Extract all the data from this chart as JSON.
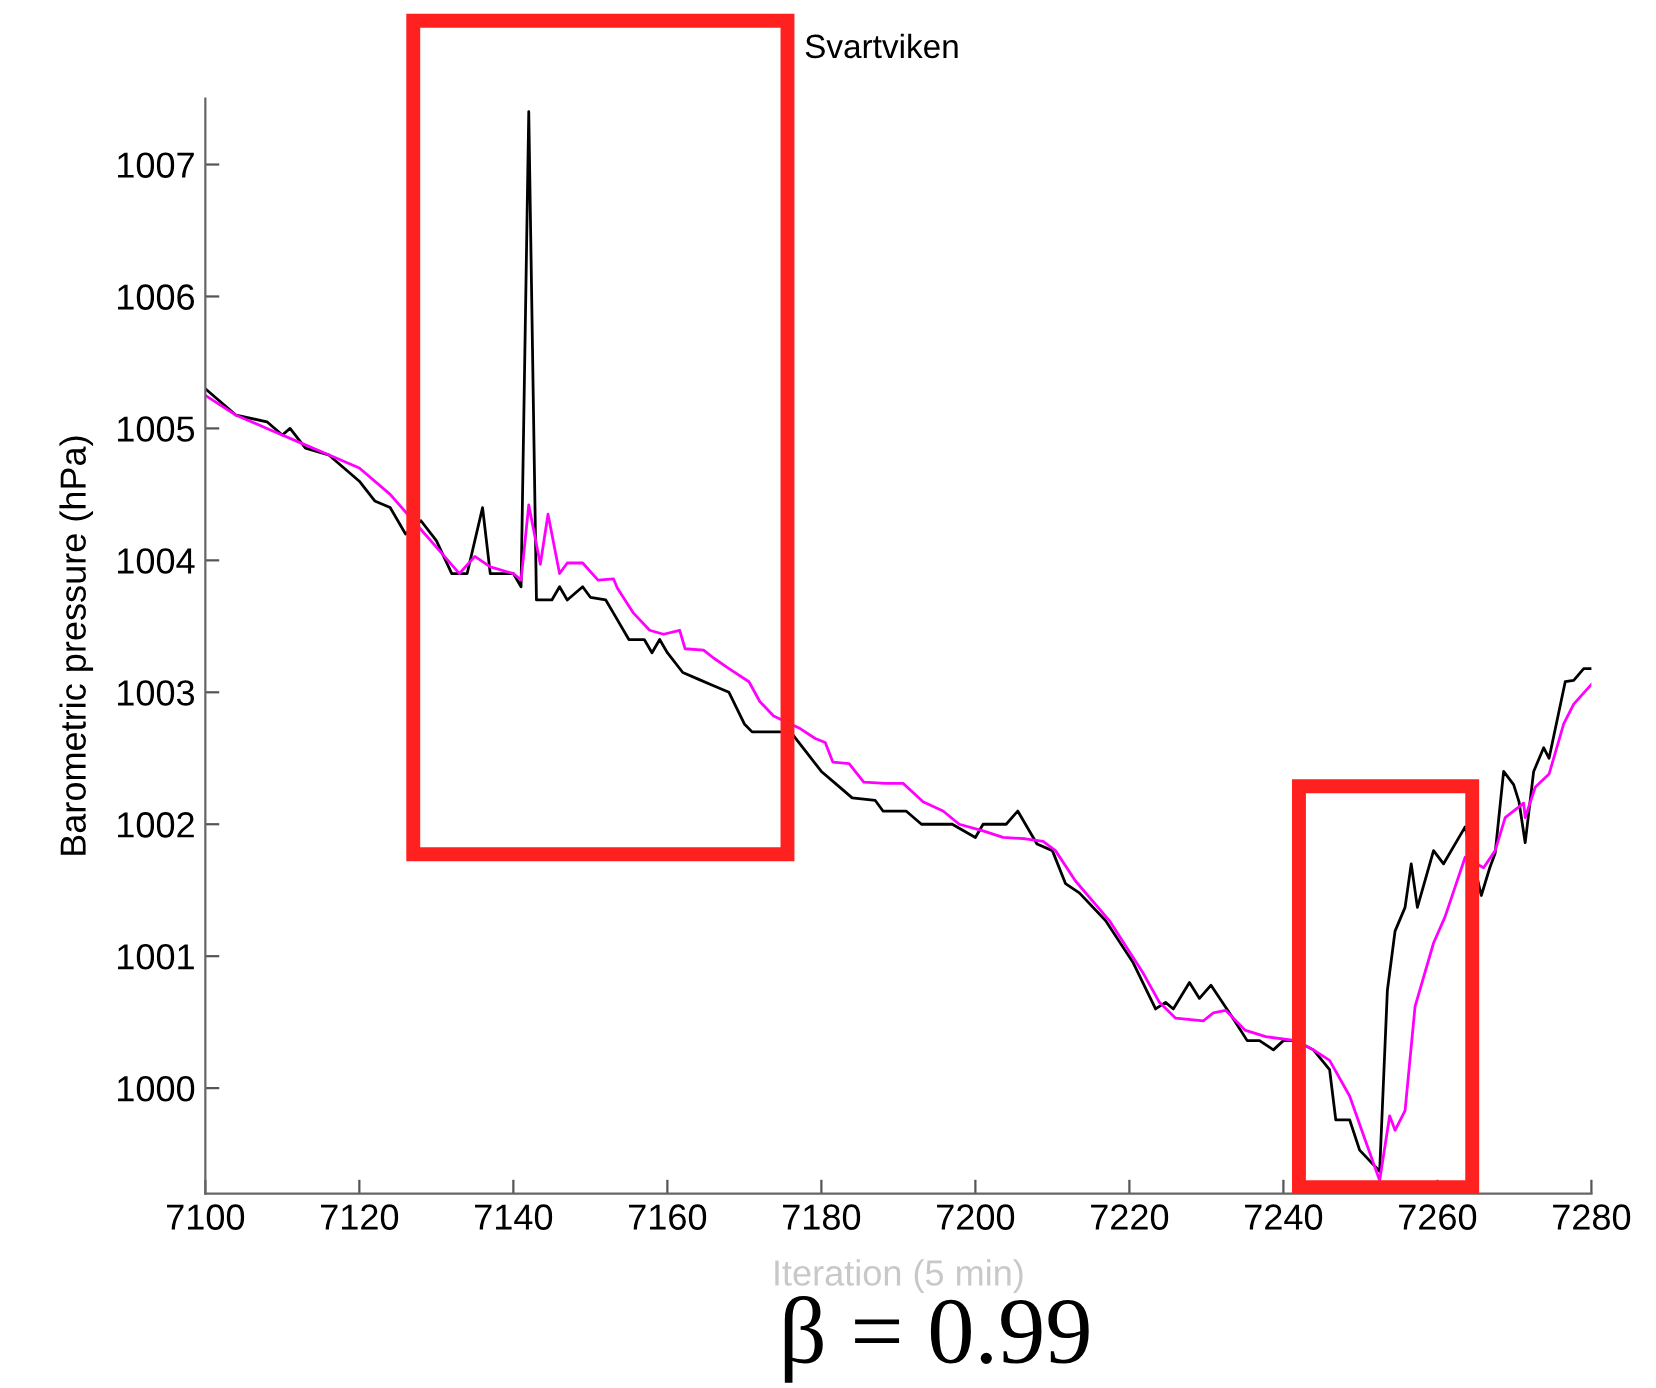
{
  "chart_data": {
    "type": "line",
    "title": "Svartviken",
    "xlabel": "Iteration (5 min)",
    "ylabel": "Barometric pressure (hPa)",
    "annotations": [
      "β = 0.99"
    ],
    "xlim": [
      7100,
      7280
    ],
    "xticks": [
      7100,
      7120,
      7140,
      7160,
      7180,
      7200,
      7220,
      7240,
      7260,
      7280
    ],
    "ylim": [
      999.2,
      1007.5
    ],
    "yticks": [
      1000,
      1001,
      1002,
      1003,
      1004,
      1005,
      1006,
      1007
    ],
    "series": [
      {
        "color": "#000000",
        "x": [
          7100,
          7102,
          7104,
          7108,
          7110,
          7111,
          7113,
          7116,
          7118,
          7120,
          7122,
          7124,
          7126,
          7128,
          7130,
          7132,
          7134,
          7136,
          7137,
          7140,
          7141,
          7142,
          7143,
          7145,
          7146,
          7147,
          7149,
          7150,
          7152,
          7153,
          7155,
          7157,
          7158,
          7159,
          7160,
          7162,
          7164,
          7166,
          7168,
          7170,
          7171,
          7175,
          7176,
          7178,
          7180,
          7182,
          7184,
          7187,
          7188,
          7191,
          7193,
          7197,
          7200,
          7201,
          7204,
          7205.5,
          7208,
          7210,
          7211.7,
          7213.5,
          7216.9,
          7220.5,
          7223.4,
          7224.7,
          7225.7,
          7227.8,
          7229.1,
          7230.6,
          7233,
          7235.3,
          7236.9,
          7238.7,
          7240,
          7241.6,
          7243.9,
          7246,
          7246.8,
          7248.6,
          7249.9,
          7252.5,
          7253.5,
          7254.5,
          7255.8,
          7256.6,
          7257.4,
          7259.5,
          7260.8,
          7263.6,
          7265.7,
          7266.8,
          7267.5,
          7268.6,
          7269.9,
          7270.6,
          7271.4,
          7272.5,
          7273.8,
          7274.5,
          7276.6,
          7277.7,
          7279,
          7280
        ],
        "values": [
          1005.3,
          1005.2,
          1005.1,
          1005.05,
          1004.95,
          1005.0,
          1004.85,
          1004.8,
          1004.7,
          1004.6,
          1004.45,
          1004.4,
          1004.2,
          1004.3,
          1004.15,
          1003.9,
          1003.9,
          1004.4,
          1003.9,
          1003.9,
          1003.8,
          1007.4,
          1003.7,
          1003.7,
          1003.8,
          1003.7,
          1003.8,
          1003.72,
          1003.7,
          1003.6,
          1003.4,
          1003.4,
          1003.3,
          1003.4,
          1003.3,
          1003.15,
          1003.1,
          1003.05,
          1003.0,
          1002.76,
          1002.7,
          1002.7,
          1002.7,
          1002.55,
          1002.4,
          1002.3,
          1002.2,
          1002.18,
          1002.1,
          1002.1,
          1002.0,
          1002.0,
          1001.9,
          1002.0,
          1002.0,
          1002.1,
          1001.85,
          1001.8,
          1001.55,
          1001.48,
          1001.27,
          1000.95,
          1000.6,
          1000.65,
          1000.6,
          1000.8,
          1000.68,
          1000.78,
          1000.57,
          1000.36,
          1000.36,
          1000.29,
          1000.36,
          1000.36,
          1000.29,
          1000.14,
          999.76,
          999.76,
          999.53,
          999.37,
          1000.74,
          1001.19,
          1001.37,
          1001.7,
          1001.37,
          1001.8,
          1001.7,
          1001.98,
          1001.46,
          1001.67,
          1001.78,
          1002.4,
          1002.3,
          1002.17,
          1001.86,
          1002.4,
          1002.58,
          1002.5,
          1003.08,
          1003.09,
          1003.18,
          1003.18
        ]
      },
      {
        "color": "#ff00ff",
        "x": [
          7100,
          7104,
          7108,
          7112,
          7116,
          7120,
          7124,
          7127,
          7130,
          7133,
          7135,
          7137,
          7140,
          7141,
          7142,
          7143.5,
          7144.5,
          7146,
          7147,
          7149,
          7151,
          7153,
          7153.5,
          7155.6,
          7157.7,
          7159.5,
          7161.6,
          7162.3,
          7164.7,
          7166,
          7168,
          7170.6,
          7172,
          7173.8,
          7177.1,
          7179.2,
          7180.5,
          7181.5,
          7183.6,
          7185.5,
          7188.3,
          7190.6,
          7193.2,
          7195.8,
          7197.9,
          7201,
          7203.6,
          7206.5,
          7208.8,
          7210.4,
          7213,
          7217.4,
          7221.8,
          7223.9,
          7226,
          7229.6,
          7230.9,
          7232.5,
          7235,
          7237.7,
          7241.6,
          7243.9,
          7246,
          7248.6,
          7250.6,
          7252.5,
          7253.8,
          7254.5,
          7255.8,
          7257.1,
          7259.5,
          7261,
          7263.6,
          7266,
          7267.5,
          7268.8,
          7271.2,
          7271.4,
          7272.7,
          7274.5,
          7276.4,
          7277.7,
          7280
        ],
        "values": [
          1005.25,
          1005.1,
          1005.0,
          1004.9,
          1004.8,
          1004.7,
          1004.5,
          1004.3,
          1004.1,
          1003.9,
          1004.03,
          1003.95,
          1003.9,
          1003.85,
          1004.42,
          1003.97,
          1004.35,
          1003.9,
          1003.98,
          1003.98,
          1003.85,
          1003.86,
          1003.79,
          1003.6,
          1003.47,
          1003.44,
          1003.47,
          1003.33,
          1003.32,
          1003.26,
          1003.18,
          1003.08,
          1002.93,
          1002.82,
          1002.73,
          1002.65,
          1002.62,
          1002.47,
          1002.46,
          1002.32,
          1002.31,
          1002.31,
          1002.17,
          1002.1,
          1002.0,
          1001.95,
          1001.9,
          1001.89,
          1001.87,
          1001.8,
          1001.57,
          1001.27,
          1000.87,
          1000.65,
          1000.53,
          1000.51,
          1000.57,
          1000.59,
          1000.44,
          1000.39,
          1000.36,
          1000.29,
          1000.21,
          999.94,
          999.61,
          999.3,
          999.79,
          999.68,
          999.83,
          1000.62,
          1001.1,
          1001.3,
          1001.75,
          1001.67,
          1001.8,
          1002.05,
          1002.16,
          1002.05,
          1002.28,
          1002.38,
          1002.76,
          1002.91,
          1003.06
        ]
      }
    ]
  }
}
